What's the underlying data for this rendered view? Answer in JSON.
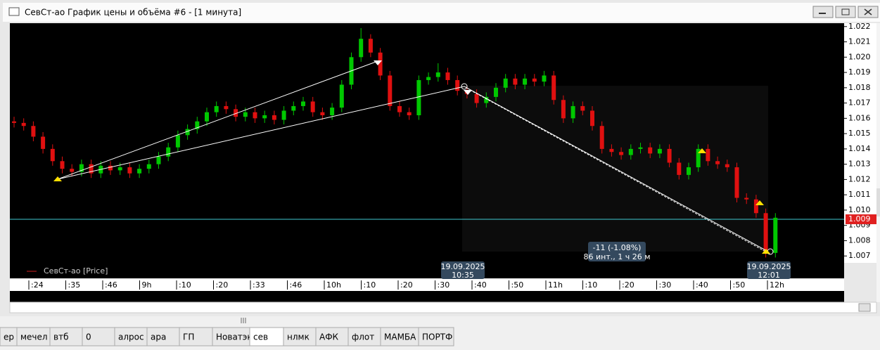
{
  "window": {
    "title": "СевСт-ао График цены и объёма #6 - [1 минута]"
  },
  "chart_data": {
    "type": "candlestick",
    "legend": "СевСт-ао [Price]",
    "legend_color": "#d02020",
    "up_color": "#00c800",
    "down_color": "#e01010",
    "open": [
      1.0158,
      1.0157,
      1.0155,
      1.0148,
      1.014,
      1.0132,
      1.0127,
      1.0125,
      1.013,
      1.0124,
      1.0129,
      1.0126,
      1.0128,
      1.0124,
      1.0127,
      1.013,
      1.0135,
      1.0141,
      1.0149,
      1.0153,
      1.0158,
      1.0164,
      1.0168,
      1.0166,
      1.0161,
      1.0164,
      1.016,
      1.0162,
      1.0159,
      1.0165,
      1.0168,
      1.0171,
      1.0164,
      1.0162,
      1.0167,
      1.0182,
      1.02,
      1.0212,
      1.0203,
      1.0188,
      1.0168,
      1.0164,
      1.0162,
      1.0185,
      1.0187,
      1.019,
      1.0185,
      1.0178,
      1.0176,
      1.017,
      1.0174,
      1.018,
      1.0186,
      1.0182,
      1.0186,
      1.0184,
      1.0188,
      1.0172,
      1.016,
      1.0168,
      1.0165,
      1.0155,
      1.014,
      1.0138,
      1.0136,
      1.014,
      1.0141,
      1.0137,
      1.014,
      1.0131,
      1.0123,
      1.0128,
      1.014,
      1.0132,
      1.013,
      1.0128,
      1.0108,
      1.0107,
      1.0098,
      1.0072
    ],
    "high": [
      1.0161,
      1.016,
      1.0158,
      1.0151,
      1.0143,
      1.0135,
      1.013,
      1.0133,
      1.0133,
      1.0132,
      1.0132,
      1.0131,
      1.0131,
      1.013,
      1.0133,
      1.0138,
      1.0144,
      1.0152,
      1.0156,
      1.0161,
      1.0167,
      1.0171,
      1.0171,
      1.0169,
      1.0167,
      1.0167,
      1.0165,
      1.0165,
      1.0168,
      1.0171,
      1.0174,
      1.0174,
      1.0167,
      1.017,
      1.0185,
      1.0203,
      1.0219,
      1.0215,
      1.0206,
      1.0191,
      1.0171,
      1.0167,
      1.0188,
      1.019,
      1.0196,
      1.0193,
      1.0188,
      1.0181,
      1.0179,
      1.0177,
      1.0183,
      1.0189,
      1.0189,
      1.0189,
      1.0189,
      1.0191,
      1.0191,
      1.0175,
      1.0171,
      1.0171,
      1.0168,
      1.0158,
      1.0143,
      1.0141,
      1.0143,
      1.0144,
      1.0144,
      1.0143,
      1.0143,
      1.0134,
      1.0131,
      1.0143,
      1.0143,
      1.0135,
      1.0133,
      1.0131,
      1.0111,
      1.011,
      1.0101,
      1.0098
    ],
    "low": [
      1.0154,
      1.0152,
      1.0145,
      1.0137,
      1.0129,
      1.0124,
      1.0122,
      1.0122,
      1.0121,
      1.0121,
      1.0123,
      1.0123,
      1.0121,
      1.0121,
      1.0124,
      1.0127,
      1.0132,
      1.0138,
      1.0146,
      1.015,
      1.0155,
      1.0161,
      1.0163,
      1.0158,
      1.0158,
      1.0157,
      1.0157,
      1.0156,
      1.0156,
      1.0162,
      1.0165,
      1.0161,
      1.0159,
      1.0159,
      1.0164,
      1.0179,
      1.0197,
      1.02,
      1.0185,
      1.0165,
      1.0161,
      1.0159,
      1.0159,
      1.0182,
      1.0184,
      1.0182,
      1.0175,
      1.0173,
      1.0167,
      1.0167,
      1.0171,
      1.0177,
      1.0179,
      1.0179,
      1.0181,
      1.0181,
      1.0169,
      1.0157,
      1.0157,
      1.0162,
      1.0152,
      1.0137,
      1.0135,
      1.0133,
      1.0133,
      1.0137,
      1.0134,
      1.0134,
      1.0128,
      1.012,
      1.012,
      1.0125,
      1.0129,
      1.0127,
      1.0125,
      1.0105,
      1.0104,
      1.0095,
      1.0069,
      1.0069
    ],
    "close": [
      1.0157,
      1.0155,
      1.0148,
      1.014,
      1.0132,
      1.0127,
      1.0125,
      1.013,
      1.0124,
      1.0129,
      1.0126,
      1.0128,
      1.0124,
      1.0127,
      1.013,
      1.0135,
      1.0141,
      1.0149,
      1.0153,
      1.0158,
      1.0164,
      1.0168,
      1.0166,
      1.0161,
      1.0164,
      1.016,
      1.0162,
      1.0159,
      1.0165,
      1.0168,
      1.0171,
      1.0164,
      1.0162,
      1.0167,
      1.0182,
      1.02,
      1.0212,
      1.0203,
      1.0188,
      1.0168,
      1.0164,
      1.0162,
      1.0185,
      1.0187,
      1.019,
      1.0185,
      1.0178,
      1.0176,
      1.017,
      1.0174,
      1.018,
      1.0186,
      1.0182,
      1.0186,
      1.0184,
      1.0188,
      1.0172,
      1.016,
      1.0168,
      1.0165,
      1.0155,
      1.014,
      1.0138,
      1.0136,
      1.014,
      1.0141,
      1.0137,
      1.014,
      1.0131,
      1.0123,
      1.0128,
      1.014,
      1.0132,
      1.013,
      1.0128,
      1.0108,
      1.0107,
      1.0098,
      1.0072,
      1.0095
    ],
    "ylim": [
      1.00655,
      1.02222
    ],
    "yticks": [
      1.022,
      1.021,
      {
        "value": 1.02,
        "label": "1.020"
      },
      1.019,
      1.018,
      1.017,
      1.016,
      1.015,
      1.014,
      1.013,
      1.012,
      1.011,
      {
        "value": 1.01,
        "label": "1.010"
      },
      1.009,
      1.008,
      1.007
    ],
    "price_line": {
      "value": 1.0094,
      "label": "1.009"
    },
    "price_line_color": "#40c8d0",
    "x_axis_labels": [
      ":24",
      ":35",
      ":46",
      "9h",
      ":10",
      ":20",
      ":33",
      ":46",
      "10h",
      ":10",
      ":20",
      ":30",
      ":40",
      ":50",
      "11h",
      ":10",
      ":20",
      ":30",
      ":40",
      ":50",
      "12h"
    ],
    "annotations": [
      {
        "date": "19.09.2025",
        "time": "10:35"
      },
      {
        "date": "19.09.2025",
        "time": "12:01"
      }
    ],
    "measure": {
      "change": "-11 (-1.08%)",
      "span": "86 инт., 1 ч 26 м"
    }
  },
  "tabs": [
    "ер",
    "мечел",
    "втб",
    "0",
    "алрос",
    "ара",
    "ГП",
    "Новатэк",
    "сев",
    "нлмк",
    "АФК",
    "флот",
    "МАМБА",
    "ПОРТФ"
  ],
  "active_tab": 8
}
